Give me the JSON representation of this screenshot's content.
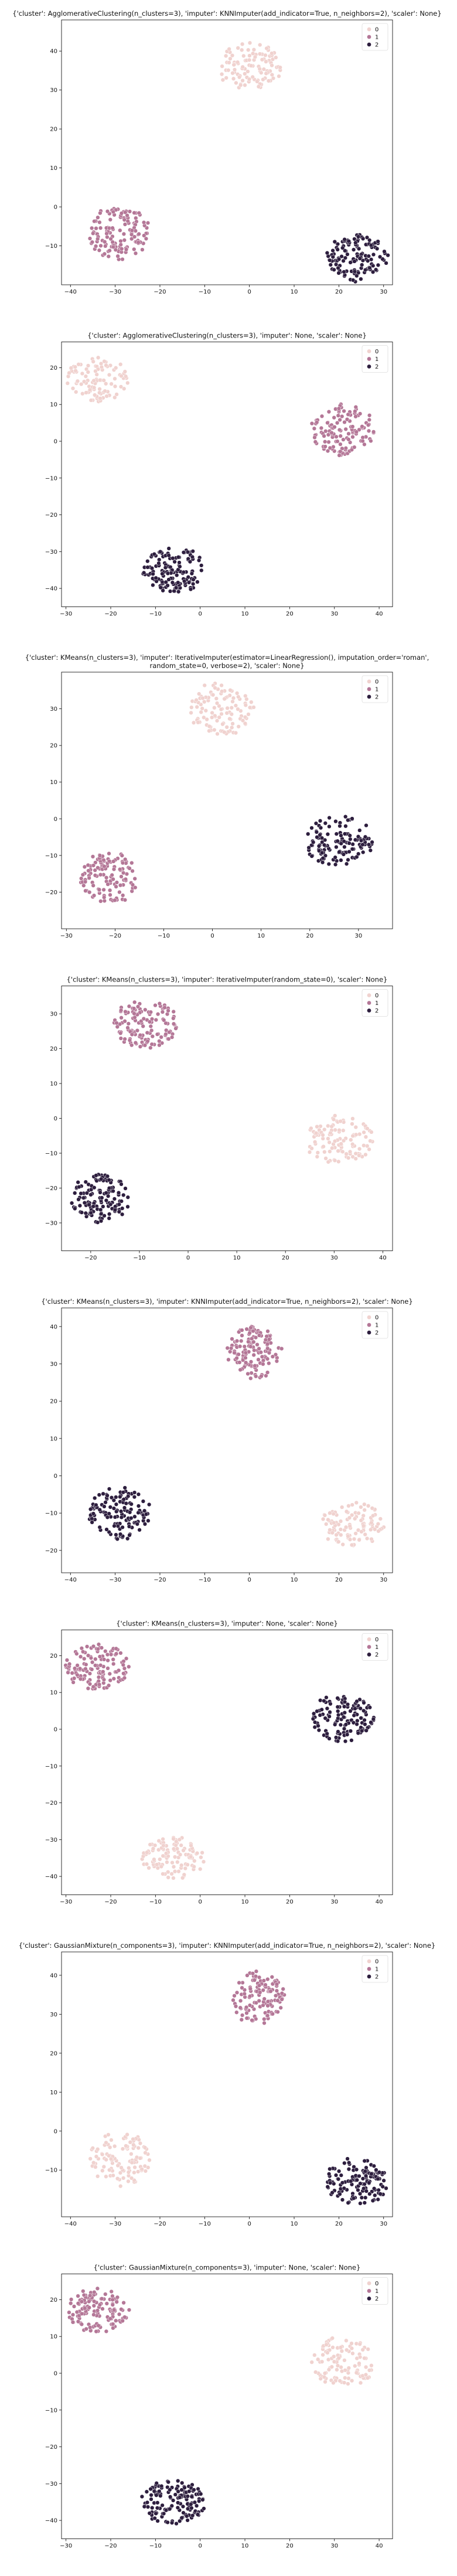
{
  "palette": {
    "c0": "#f0d2cf",
    "c1": "#b47797",
    "c2": "#2d1e3e",
    "axis": "#000000"
  },
  "chart_data": [
    {
      "type": "scatter",
      "title": "{'cluster': AgglomerativeClustering(n_clusters=3), 'imputer': KNNImputer(add_indicator=True, n_neighbors=2), 'scaler': None}",
      "legend": {
        "placement": "top-right",
        "entries": [
          "0",
          "1",
          "2"
        ]
      },
      "xlim": [
        -42,
        32
      ],
      "ylim": [
        -20,
        48
      ],
      "xticks": [
        -40,
        -30,
        -20,
        -10,
        0,
        10,
        20,
        30
      ],
      "yticks": [
        -10,
        0,
        10,
        20,
        30,
        40
      ],
      "clusters": [
        {
          "label": "0",
          "cx": 0,
          "cy": 36,
          "rx": 7,
          "ry": 6,
          "n": 110
        },
        {
          "label": "1",
          "cx": -29,
          "cy": -7,
          "rx": 7,
          "ry": 7,
          "n": 130
        },
        {
          "label": "2",
          "cx": 24,
          "cy": -13,
          "rx": 7,
          "ry": 6,
          "n": 130
        }
      ]
    },
    {
      "type": "scatter",
      "title": "{'cluster': AgglomerativeClustering(n_clusters=3), 'imputer': None, 'scaler': None}",
      "legend": {
        "placement": "top-right",
        "entries": [
          "0",
          "1",
          "2"
        ]
      },
      "xlim": [
        -31,
        43
      ],
      "ylim": [
        -45,
        27
      ],
      "xticks": [
        -30,
        -20,
        -10,
        0,
        10,
        20,
        30,
        40
      ],
      "yticks": [
        -40,
        -30,
        -20,
        -10,
        0,
        10,
        20
      ],
      "clusters": [
        {
          "label": "0",
          "cx": -23,
          "cy": 17,
          "rx": 7,
          "ry": 6,
          "n": 100
        },
        {
          "label": "1",
          "cx": 32,
          "cy": 3,
          "rx": 7,
          "ry": 7,
          "n": 130
        },
        {
          "label": "2",
          "cx": -6,
          "cy": -35,
          "rx": 7,
          "ry": 6,
          "n": 140
        }
      ]
    },
    {
      "type": "scatter",
      "title": "{'cluster': KMeans(n_clusters=3), 'imputer': IterativeImputer(estimator=LinearRegression(), imputation_order='roman',\nrandom_state=0, verbose=2), 'scaler': None}",
      "legend": {
        "placement": "top-right",
        "entries": [
          "0",
          "1",
          "2"
        ]
      },
      "xlim": [
        -31,
        37
      ],
      "ylim": [
        -30,
        40
      ],
      "xticks": [
        -30,
        -20,
        -10,
        0,
        10,
        20,
        30
      ],
      "yticks": [
        -20,
        -10,
        0,
        10,
        20,
        30
      ],
      "clusters": [
        {
          "label": "0",
          "cx": 2,
          "cy": 30,
          "rx": 7,
          "ry": 7,
          "n": 110
        },
        {
          "label": "1",
          "cx": -21,
          "cy": -16,
          "rx": 6,
          "ry": 7,
          "n": 120
        },
        {
          "label": "2",
          "cx": 26,
          "cy": -6,
          "rx": 7,
          "ry": 7,
          "n": 130
        }
      ]
    },
    {
      "type": "scatter",
      "title": "{'cluster': KMeans(n_clusters=3), 'imputer': IterativeImputer(random_state=0), 'scaler': None}",
      "legend": {
        "placement": "top-right",
        "entries": [
          "0",
          "1",
          "2"
        ]
      },
      "xlim": [
        -26,
        42
      ],
      "ylim": [
        -38,
        38
      ],
      "xticks": [
        -20,
        -10,
        0,
        10,
        20,
        30,
        40
      ],
      "yticks": [
        -30,
        -20,
        -10,
        0,
        10,
        20,
        30
      ],
      "clusters": [
        {
          "label": "0",
          "cx": 31,
          "cy": -6,
          "rx": 7,
          "ry": 7,
          "n": 110
        },
        {
          "label": "1",
          "cx": -9,
          "cy": 27,
          "rx": 7,
          "ry": 7,
          "n": 130
        },
        {
          "label": "2",
          "cx": -18,
          "cy": -23,
          "rx": 6,
          "ry": 7,
          "n": 130
        }
      ]
    },
    {
      "type": "scatter",
      "title": "{'cluster': KMeans(n_clusters=3), 'imputer': KNNImputer(add_indicator=True, n_neighbors=2), 'scaler': None}",
      "legend": {
        "placement": "top-right",
        "entries": [
          "0",
          "1",
          "2"
        ]
      },
      "xlim": [
        -42,
        32
      ],
      "ylim": [
        -26,
        45
      ],
      "xticks": [
        -40,
        -30,
        -20,
        -10,
        0,
        10,
        20,
        30
      ],
      "yticks": [
        -20,
        -10,
        0,
        10,
        20,
        30,
        40
      ],
      "clusters": [
        {
          "label": "0",
          "cx": 23,
          "cy": -13,
          "rx": 7,
          "ry": 6,
          "n": 110
        },
        {
          "label": "1",
          "cx": 1,
          "cy": 33,
          "rx": 6,
          "ry": 7,
          "n": 130
        },
        {
          "label": "2",
          "cx": -29,
          "cy": -10,
          "rx": 7,
          "ry": 7,
          "n": 130
        }
      ]
    },
    {
      "type": "scatter",
      "title": "{'cluster': KMeans(n_clusters=3), 'imputer': None, 'scaler': None}",
      "legend": {
        "placement": "top-right",
        "entries": [
          "0",
          "1",
          "2"
        ]
      },
      "xlim": [
        -31,
        43
      ],
      "ylim": [
        -45,
        27
      ],
      "xticks": [
        -30,
        -20,
        -10,
        0,
        10,
        20,
        30,
        40
      ],
      "yticks": [
        -40,
        -30,
        -20,
        -10,
        0,
        10,
        20
      ],
      "clusters": [
        {
          "label": "0",
          "cx": -6,
          "cy": -35,
          "rx": 7,
          "ry": 6,
          "n": 110
        },
        {
          "label": "1",
          "cx": -23,
          "cy": 17,
          "rx": 7,
          "ry": 6,
          "n": 130
        },
        {
          "label": "2",
          "cx": 32,
          "cy": 3,
          "rx": 7,
          "ry": 7,
          "n": 130
        }
      ]
    },
    {
      "type": "scatter",
      "title": "{'cluster': GaussianMixture(n_components=3), 'imputer': KNNImputer(add_indicator=True, n_neighbors=2), 'scaler': None}",
      "legend": {
        "placement": "top-right",
        "entries": [
          "0",
          "1",
          "2"
        ]
      },
      "xlim": [
        -42,
        32
      ],
      "ylim": [
        -22,
        46
      ],
      "xticks": [
        -40,
        -30,
        -20,
        -10,
        0,
        10,
        20,
        30
      ],
      "yticks": [
        -10,
        0,
        10,
        20,
        30,
        40
      ],
      "clusters": [
        {
          "label": "0",
          "cx": -29,
          "cy": -7,
          "rx": 7,
          "ry": 7,
          "n": 110
        },
        {
          "label": "1",
          "cx": 2,
          "cy": 34,
          "rx": 6,
          "ry": 7,
          "n": 130
        },
        {
          "label": "2",
          "cx": 24,
          "cy": -13,
          "rx": 7,
          "ry": 6,
          "n": 130
        }
      ]
    },
    {
      "type": "scatter",
      "title": "{'cluster': GaussianMixture(n_components=3), 'imputer': None, 'scaler': None}",
      "legend": {
        "placement": "top-right",
        "entries": [
          "0",
          "1",
          "2"
        ]
      },
      "xlim": [
        -31,
        43
      ],
      "ylim": [
        -45,
        27
      ],
      "xticks": [
        -30,
        -20,
        -10,
        0,
        10,
        20,
        30,
        40
      ],
      "yticks": [
        -40,
        -30,
        -20,
        -10,
        0,
        10,
        20
      ],
      "clusters": [
        {
          "label": "0",
          "cx": 32,
          "cy": 3,
          "rx": 7,
          "ry": 7,
          "n": 110
        },
        {
          "label": "1",
          "cx": -23,
          "cy": 17,
          "rx": 7,
          "ry": 6,
          "n": 130
        },
        {
          "label": "2",
          "cx": -6,
          "cy": -35,
          "rx": 7,
          "ry": 6,
          "n": 140
        }
      ]
    }
  ]
}
